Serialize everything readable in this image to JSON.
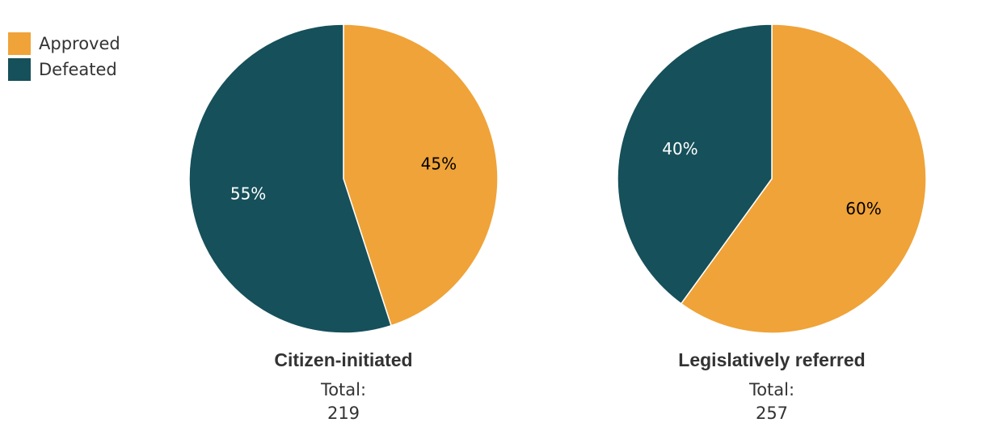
{
  "colors": {
    "approved": "#f0a338",
    "defeated": "#16505a",
    "label_on_approved": "#000000",
    "label_on_defeated": "#ffffff"
  },
  "legend": [
    {
      "label": "Approved",
      "color": "#f0a338"
    },
    {
      "label": "Defeated",
      "color": "#16505a"
    }
  ],
  "chart_data": [
    {
      "type": "pie",
      "title": "Citizen-initiated",
      "total_label": "Total:",
      "total_value": "219",
      "slices": [
        {
          "name": "Approved",
          "value": 45,
          "label": "45%"
        },
        {
          "name": "Defeated",
          "value": 55,
          "label": "55%"
        }
      ]
    },
    {
      "type": "pie",
      "title": "Legislatively referred",
      "total_label": "Total:",
      "total_value": "257",
      "slices": [
        {
          "name": "Approved",
          "value": 60,
          "label": "60%"
        },
        {
          "name": "Defeated",
          "value": 40,
          "label": "40%"
        }
      ]
    }
  ]
}
